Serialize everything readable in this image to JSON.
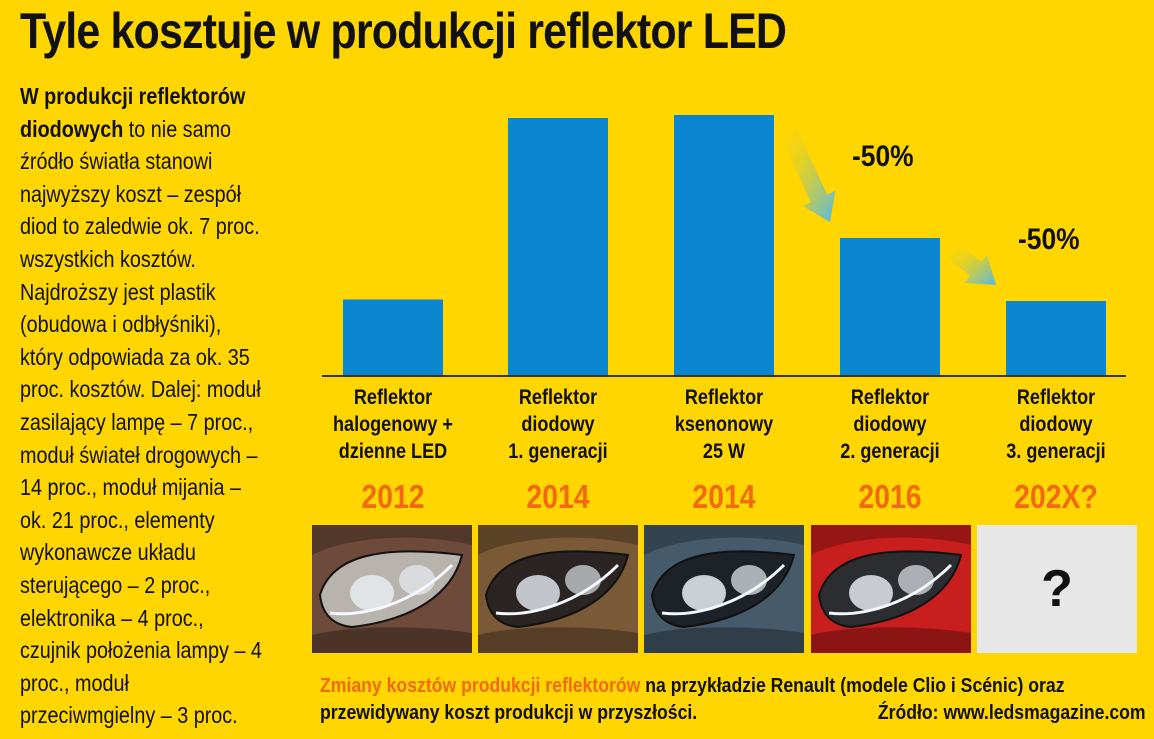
{
  "title": "Tyle kosztuje w produkcji reflektor LED",
  "sidebar": {
    "bold": "W produkcji reflektorów diodowych",
    "text": " to nie samo źródło światła stanowi najwyższy koszt – zespół diod to zaledwie ok. 7 proc. wszystkich kosztów. Najdroższy jest plastik (obudowa i odbłyśniki), który odpowiada za ok. 35 proc. kosztów. Dalej: moduł zasilający lampę – 7 proc., moduł świateł drogowych – 14 proc., moduł mijania – ok. 21 proc., elementy wykonawcze układu sterującego – 2 proc., elektronika – 4 proc., czujnik położenia lampy – 4 proc., moduł przeciwmgielny – 3 proc."
  },
  "chart_data": {
    "type": "bar",
    "title": "Tyle kosztuje w produkcji reflektor LED",
    "categories": [
      [
        "Reflektor",
        "halogenowy +",
        "dzienne LED"
      ],
      [
        "Reflektor",
        "diodowy",
        "1. generacji"
      ],
      [
        "Reflektor",
        "ksenonowy",
        "25 W"
      ],
      [
        "Reflektor",
        "diodowy",
        "2. generacji"
      ],
      [
        "Reflektor",
        "diodowy",
        "3. generacji"
      ]
    ],
    "years": [
      "2012",
      "2014",
      "2014",
      "2016",
      "202X?"
    ],
    "values": [
      25.5,
      86,
      87,
      46,
      25
    ],
    "ylim": [
      0,
      100
    ],
    "yaxis_visible": false,
    "annotations": [
      {
        "text": "-50%",
        "from_index": 2,
        "to_index": 3
      },
      {
        "text": "-50%",
        "from_index": 3,
        "to_index": 4
      }
    ],
    "bar_color": "#0A85D0",
    "xlabel": "",
    "ylabel": ""
  },
  "photos": [
    "reflektor-2012",
    "reflektor-2014-led",
    "reflektor-2014-ksenon",
    "reflektor-2016",
    "?"
  ],
  "caption": {
    "highlight": "Zmiany kosztów produkcji reflektorów",
    "text1": " na przykładzie Renault (modele Clio i Scénic) oraz",
    "text2": "przewidywany koszt produkcji w przyszłości.",
    "source": "Źródło: www.ledsmagazine.com"
  },
  "colors": {
    "background": "#FFD600",
    "bar": "#0A85D0",
    "year": "#F26A10",
    "text": "#111111"
  }
}
